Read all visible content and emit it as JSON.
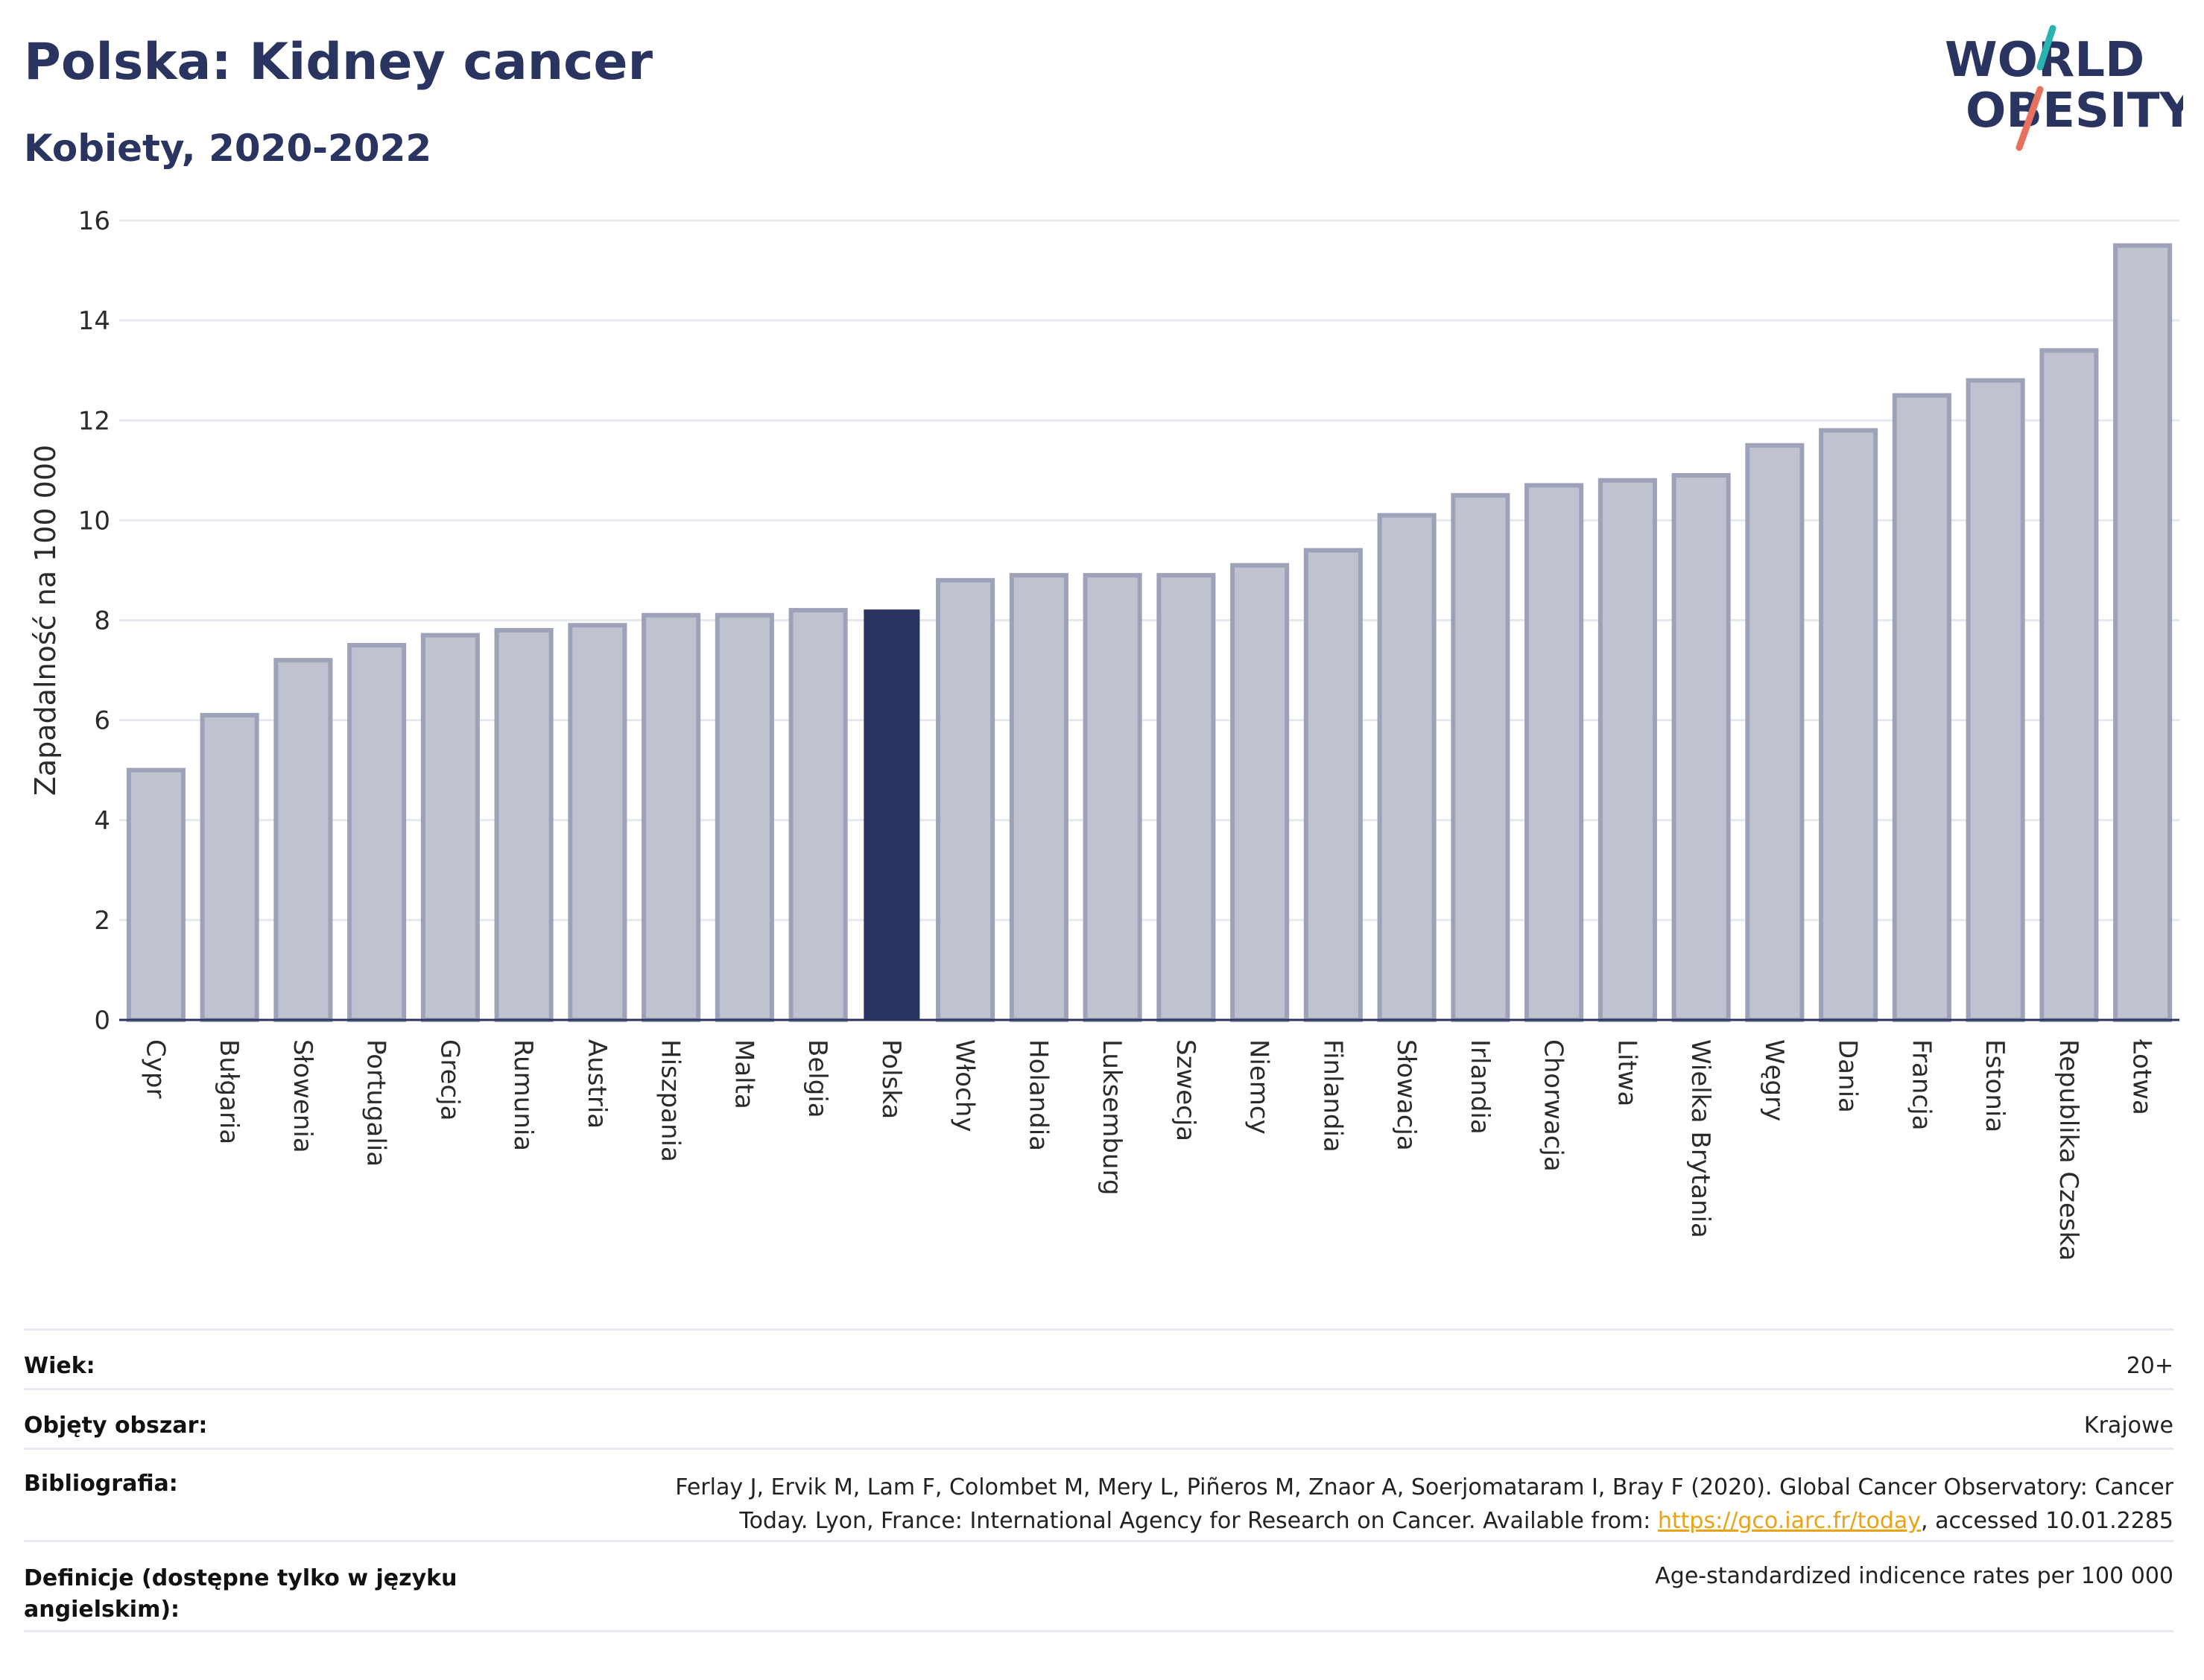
{
  "header": {
    "title": "Polska: Kidney cancer",
    "subtitle": "Kobiety, 2020-2022"
  },
  "logo": {
    "line1": "WORLD",
    "line2": "OBESITY",
    "slash_colors": [
      "#2ab3b1",
      "#e8705f"
    ]
  },
  "chart_data": {
    "type": "bar",
    "ylabel": "Zapadalność na 100 000",
    "ylim": [
      0,
      16
    ],
    "yticks": [
      0,
      2,
      4,
      6,
      8,
      10,
      12,
      14,
      16
    ],
    "categories": [
      "Cypr",
      "Bułgaria",
      "Słowenia",
      "Portugalia",
      "Grecja",
      "Rumunia",
      "Austria",
      "Hiszpania",
      "Malta",
      "Belgia",
      "Polska",
      "Włochy",
      "Holandia",
      "Luksemburg",
      "Szwecja",
      "Niemcy",
      "Finlandia",
      "Słowacja",
      "Irlandia",
      "Chorwacja",
      "Litwa",
      "Wielka Brytania",
      "Węgry",
      "Dania",
      "Francja",
      "Estonia",
      "Republika Czeska",
      "Łotwa"
    ],
    "values": [
      5.0,
      6.1,
      7.2,
      7.5,
      7.7,
      7.8,
      7.9,
      8.1,
      8.1,
      8.2,
      8.2,
      8.8,
      8.9,
      8.9,
      8.9,
      9.1,
      9.4,
      10.1,
      10.5,
      10.7,
      10.8,
      10.9,
      11.5,
      11.8,
      12.5,
      12.8,
      13.4,
      15.5
    ],
    "highlight": "Polska",
    "colors": {
      "bar": "#bfc2cf",
      "bar_border": "#9ea2b8",
      "highlight": "#2a3460",
      "grid": "#e6e8ef",
      "axis": "#2a3460"
    },
    "grid": true
  },
  "footer": {
    "age_label": "Wiek:",
    "age_value": "20+",
    "area_label": "Objęty obszar:",
    "area_value": "Krajowe",
    "bib_label": "Bibliografia:",
    "bib_text_1": "Ferlay J, Ervik M, Lam F, Colombet M, Mery L, Piñeros M, Znaor A, Soerjomataram I, Bray F (2020). Global Cancer Observatory: Cancer Today. Lyon, France: International Agency for Research on Cancer. Available from: ",
    "bib_link": "https://gco.iarc.fr/today",
    "bib_text_2": ", accessed 10.01.2285",
    "def_label": "Definicje (dostępne tylko w języku angielskim):",
    "def_value": "Age-standardized indicence rates per 100 000"
  }
}
